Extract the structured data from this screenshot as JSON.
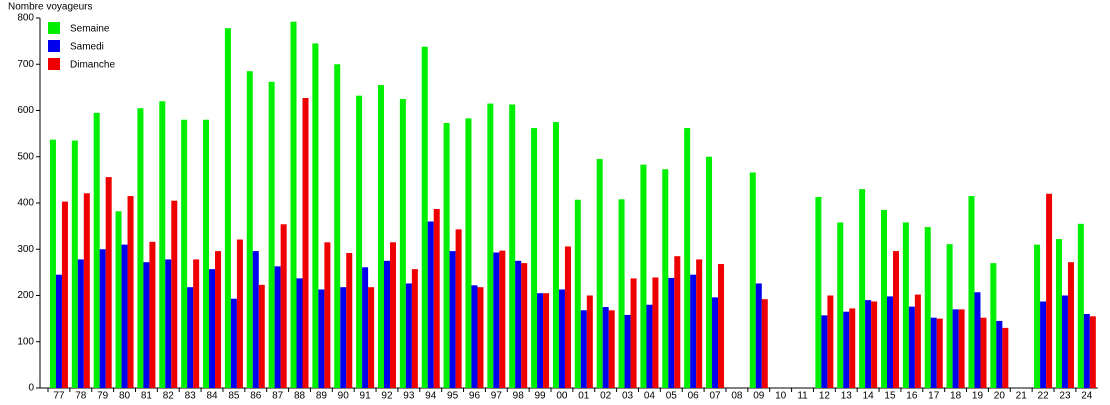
{
  "chart_data": {
    "type": "bar",
    "y_label": "Nombre voyageurs",
    "categories": [
      "77",
      "78",
      "79",
      "80",
      "81",
      "82",
      "83",
      "84",
      "85",
      "86",
      "87",
      "88",
      "89",
      "90",
      "91",
      "92",
      "93",
      "94",
      "95",
      "96",
      "97",
      "98",
      "99",
      "00",
      "01",
      "02",
      "03",
      "04",
      "05",
      "06",
      "07",
      "08",
      "09",
      "10",
      "11",
      "12",
      "13",
      "14",
      "15",
      "16",
      "17",
      "18",
      "19",
      "20",
      "21",
      "22",
      "23",
      "24"
    ],
    "series": [
      {
        "name": "Semaine",
        "color": "#00ee00",
        "values": [
          537,
          535,
          595,
          382,
          605,
          620,
          580,
          580,
          778,
          685,
          662,
          792,
          745,
          700,
          632,
          655,
          625,
          738,
          573,
          583,
          615,
          613,
          562,
          575,
          407,
          495,
          408,
          483,
          473,
          562,
          500,
          null,
          466,
          null,
          null,
          413,
          358,
          430,
          385,
          358,
          348,
          311,
          415,
          270,
          null,
          310,
          322,
          355
        ]
      },
      {
        "name": "Samedi",
        "color": "#0000ee",
        "values": [
          245,
          278,
          300,
          310,
          272,
          278,
          218,
          257,
          193,
          296,
          263,
          237,
          213,
          218,
          261,
          275,
          226,
          360,
          296,
          222,
          293,
          275,
          205,
          213,
          168,
          175,
          158,
          180,
          238,
          245,
          196,
          null,
          226,
          null,
          null,
          157,
          165,
          190,
          198,
          176,
          152,
          170,
          207,
          145,
          null,
          187,
          200,
          160
        ]
      },
      {
        "name": "Dimanche",
        "color": "#ee0000",
        "values": [
          403,
          421,
          456,
          415,
          316,
          405,
          278,
          296,
          321,
          223,
          354,
          627,
          315,
          292,
          218,
          315,
          257,
          387,
          343,
          218,
          297,
          270,
          205,
          306,
          200,
          168,
          237,
          239,
          285,
          278,
          268,
          null,
          192,
          null,
          null,
          200,
          172,
          187,
          296,
          202,
          150,
          170,
          152,
          130,
          null,
          420,
          272,
          155
        ]
      }
    ],
    "ylim": [
      0,
      800
    ],
    "yticks": [
      0,
      100,
      200,
      300,
      400,
      500,
      600,
      700,
      800
    ],
    "legend": "top-left"
  }
}
